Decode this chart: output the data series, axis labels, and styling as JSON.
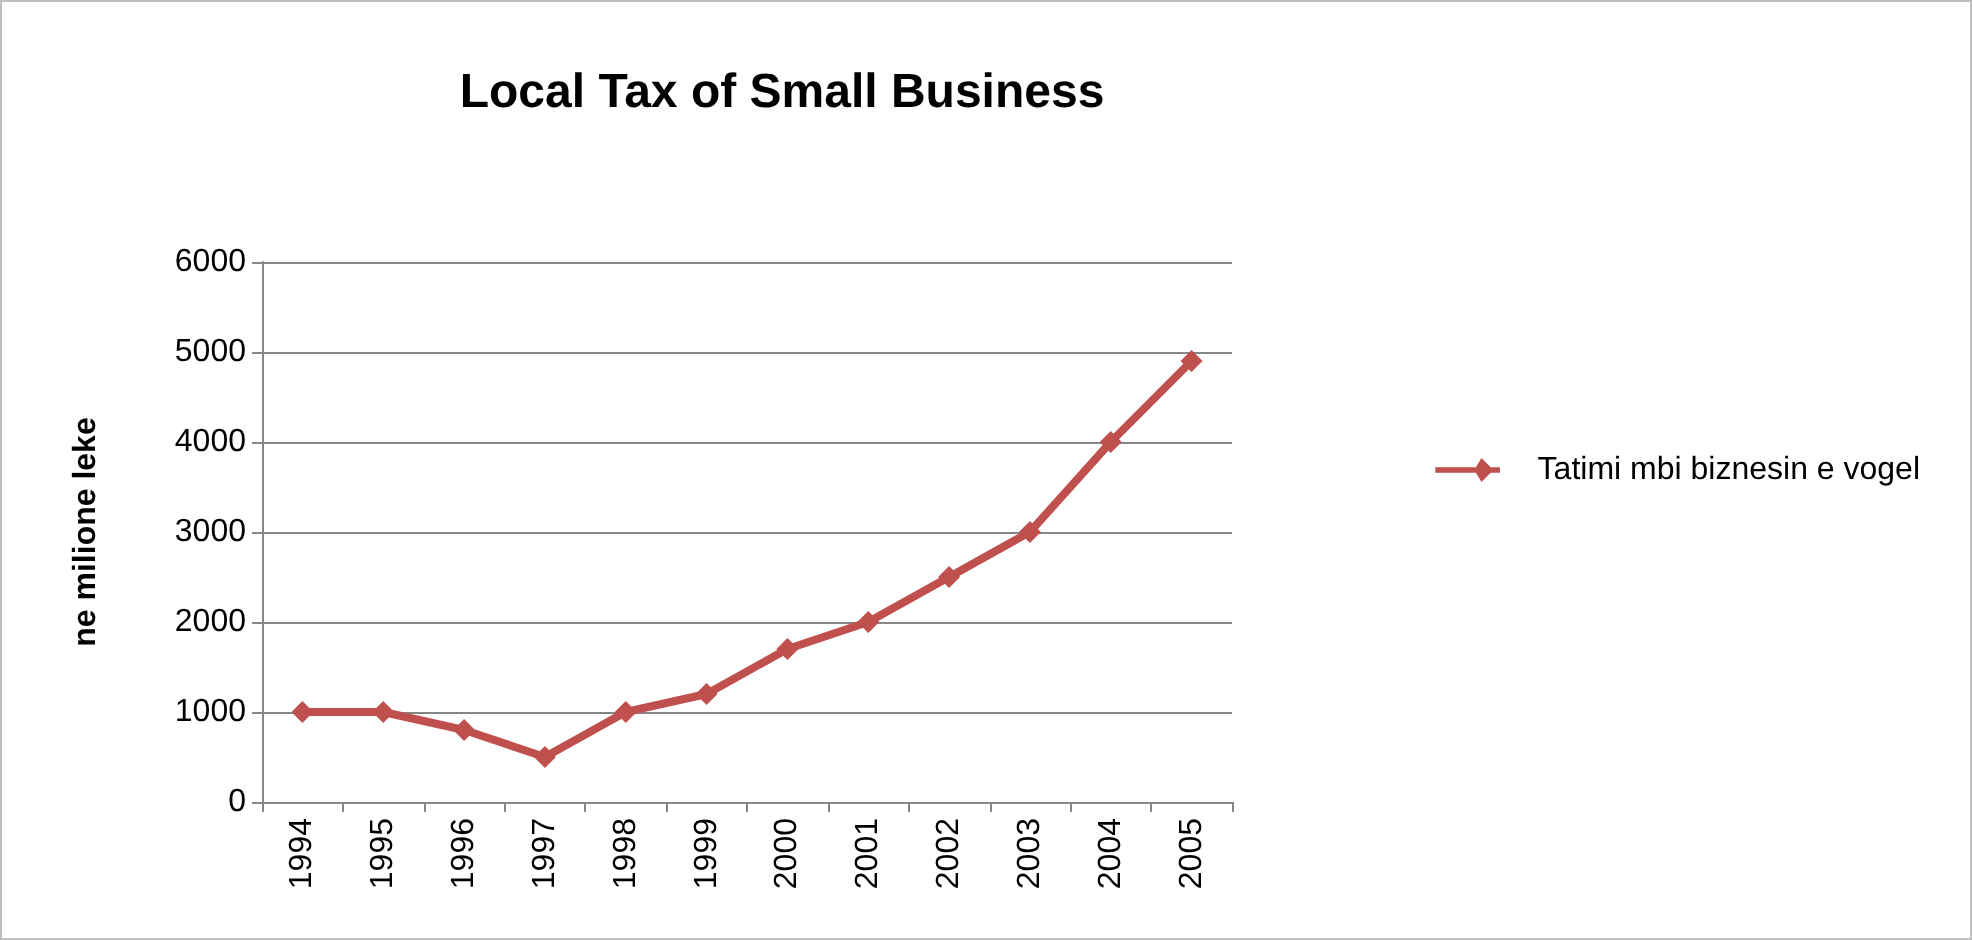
{
  "chart_data": {
    "type": "line",
    "title": "Local Tax of Small Business",
    "ylabel": "ne milione leke",
    "categories": [
      "1994",
      "1995",
      "1996",
      "1997",
      "1998",
      "1999",
      "2000",
      "2001",
      "2002",
      "2003",
      "2004",
      "2005"
    ],
    "series": [
      {
        "name": "Tatimi mbi biznesin e vogel",
        "color": "#c0504d",
        "values": [
          1000,
          1000,
          800,
          500,
          1000,
          1200,
          1700,
          2000,
          2500,
          3000,
          4000,
          4900
        ]
      }
    ],
    "ylim": [
      0,
      6000
    ],
    "yticks": [
      0,
      1000,
      2000,
      3000,
      4000,
      5000,
      6000
    ],
    "grid": "y",
    "legend": "right",
    "marker": "diamond",
    "line_style": "solid"
  }
}
